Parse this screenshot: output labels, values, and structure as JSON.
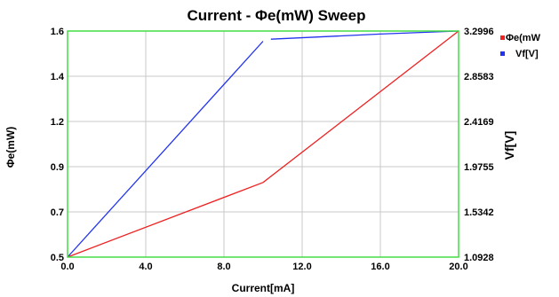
{
  "chart_data": {
    "type": "line",
    "title": "Current - Φe(mW) Sweep",
    "xlabel": "Current[mA]",
    "ylabel_left": "Φe(mW)",
    "ylabel_right": "Vf[V]",
    "x_ticks": [
      "0.0",
      "4.0",
      "8.0",
      "12.0",
      "16.0",
      "20.0"
    ],
    "y_left_ticks": [
      "0.5",
      "0.7",
      "0.9",
      "1.2",
      "1.4",
      "1.6"
    ],
    "y_right_ticks": [
      "1.0928",
      "1.5342",
      "1.9755",
      "2.4169",
      "2.8583",
      "3.2996"
    ],
    "xlim": [
      0,
      20
    ],
    "grid": true,
    "legend_position": "right",
    "colors": {
      "frame": "#44dd44",
      "grid": "#c8c8c8"
    },
    "series": [
      {
        "name": "Φe(mW",
        "axis": "left",
        "color": "#ee2222",
        "x": [
          0,
          10,
          20
        ],
        "y": [
          0.5,
          0.83,
          1.6
        ]
      },
      {
        "name": "Vf[V]",
        "axis": "right",
        "color": "#2233ee",
        "x": [
          0,
          10,
          10.4,
          16,
          20
        ],
        "y": [
          1.0928,
          3.2,
          3.22,
          3.27,
          3.2996
        ]
      }
    ]
  }
}
